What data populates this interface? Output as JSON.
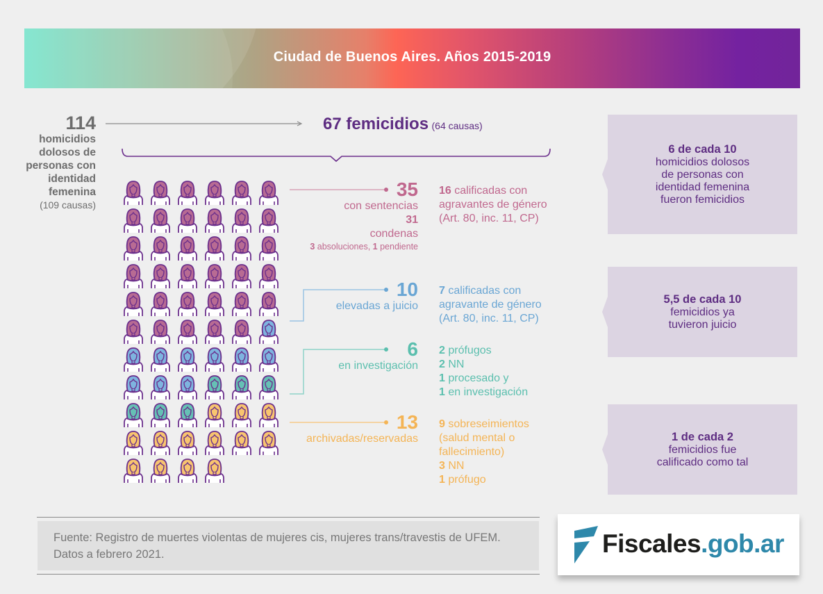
{
  "header": {
    "title": "Ciudad de Buenos Aires. Años 2015-2019"
  },
  "total": {
    "number": "114",
    "description_lines": [
      "homicidios",
      "dolosos de",
      "personas con",
      "identidad",
      "femenina"
    ],
    "causas": "(109 causas)"
  },
  "femicidios": {
    "number_label": "67 femicidios",
    "causas": "(64 causas)"
  },
  "colors": {
    "purple": "#5e2d82",
    "pink": "#c0688e",
    "blue": "#6aa6d4",
    "teal": "#5bbfae",
    "yellow": "#f4b455",
    "box_bg": "#dcd4e2"
  },
  "grid": {
    "icon": "woman-icon",
    "counts": {
      "sentencias": 35,
      "juicio": 10,
      "investigacion": 6,
      "archivadas": 13
    },
    "fills": {
      "sentencias": "#b86b93",
      "juicio": "#7eb4df",
      "investigacion": "#66c0b5",
      "archivadas": "#f8c56f"
    }
  },
  "categories": [
    {
      "key": "sentencias",
      "number": "35",
      "label": "con sentencias",
      "sub_number": "31",
      "sub_label": "condenas",
      "small_num1": "3",
      "small_txt1": " absoluciones, ",
      "small_num2": "1",
      "small_txt2": " pendiente",
      "details": [
        {
          "b": "16",
          "t": " calificadas con"
        },
        {
          "b": "",
          "t": "agravantes de género"
        },
        {
          "b": "",
          "t": "(Art. 80, inc. 11, CP)"
        }
      ]
    },
    {
      "key": "juicio",
      "number": "10",
      "label": "elevadas a juicio",
      "details": [
        {
          "b": "7",
          "t": " calificadas con"
        },
        {
          "b": "",
          "t": "agravante de género"
        },
        {
          "b": "",
          "t": "(Art. 80, inc. 11, CP)"
        }
      ]
    },
    {
      "key": "investigacion",
      "number": "6",
      "label": "en investigación",
      "details": [
        {
          "b": "2",
          "t": " prófugos"
        },
        {
          "b": "2",
          "t": " NN"
        },
        {
          "b": "1",
          "t": " procesado y"
        },
        {
          "b": "1",
          "t": " en investigación"
        }
      ]
    },
    {
      "key": "archivadas",
      "number": "13",
      "label": "archivadas/reservadas",
      "details": [
        {
          "b": "9",
          "t": " sobreseimientos"
        },
        {
          "b": "",
          "t": "(salud mental o"
        },
        {
          "b": "",
          "t": "fallecimiento)"
        },
        {
          "b": "3",
          "t": " NN"
        },
        {
          "b": "1",
          "t": " prófugo"
        }
      ]
    }
  ],
  "boxes": [
    {
      "highlight": "6 de cada 10",
      "lines": [
        "homicidios dolosos",
        "de personas con",
        "identidad femenina",
        "fueron femicidios"
      ]
    },
    {
      "highlight": "5,5 de cada 10",
      "lines": [
        "femicidios ya",
        "tuvieron juicio"
      ]
    },
    {
      "highlight": "1 de cada 2",
      "lines": [
        "femicidios fue",
        "calificado como tal"
      ]
    }
  ],
  "footer": {
    "source": "Fuente: Registro de muertes violentas de mujeres cis, mujeres trans/travestis de UFEM. Datos a febrero 2021."
  },
  "logo": {
    "part1": "Fiscales",
    "part2": ".gob.ar"
  }
}
